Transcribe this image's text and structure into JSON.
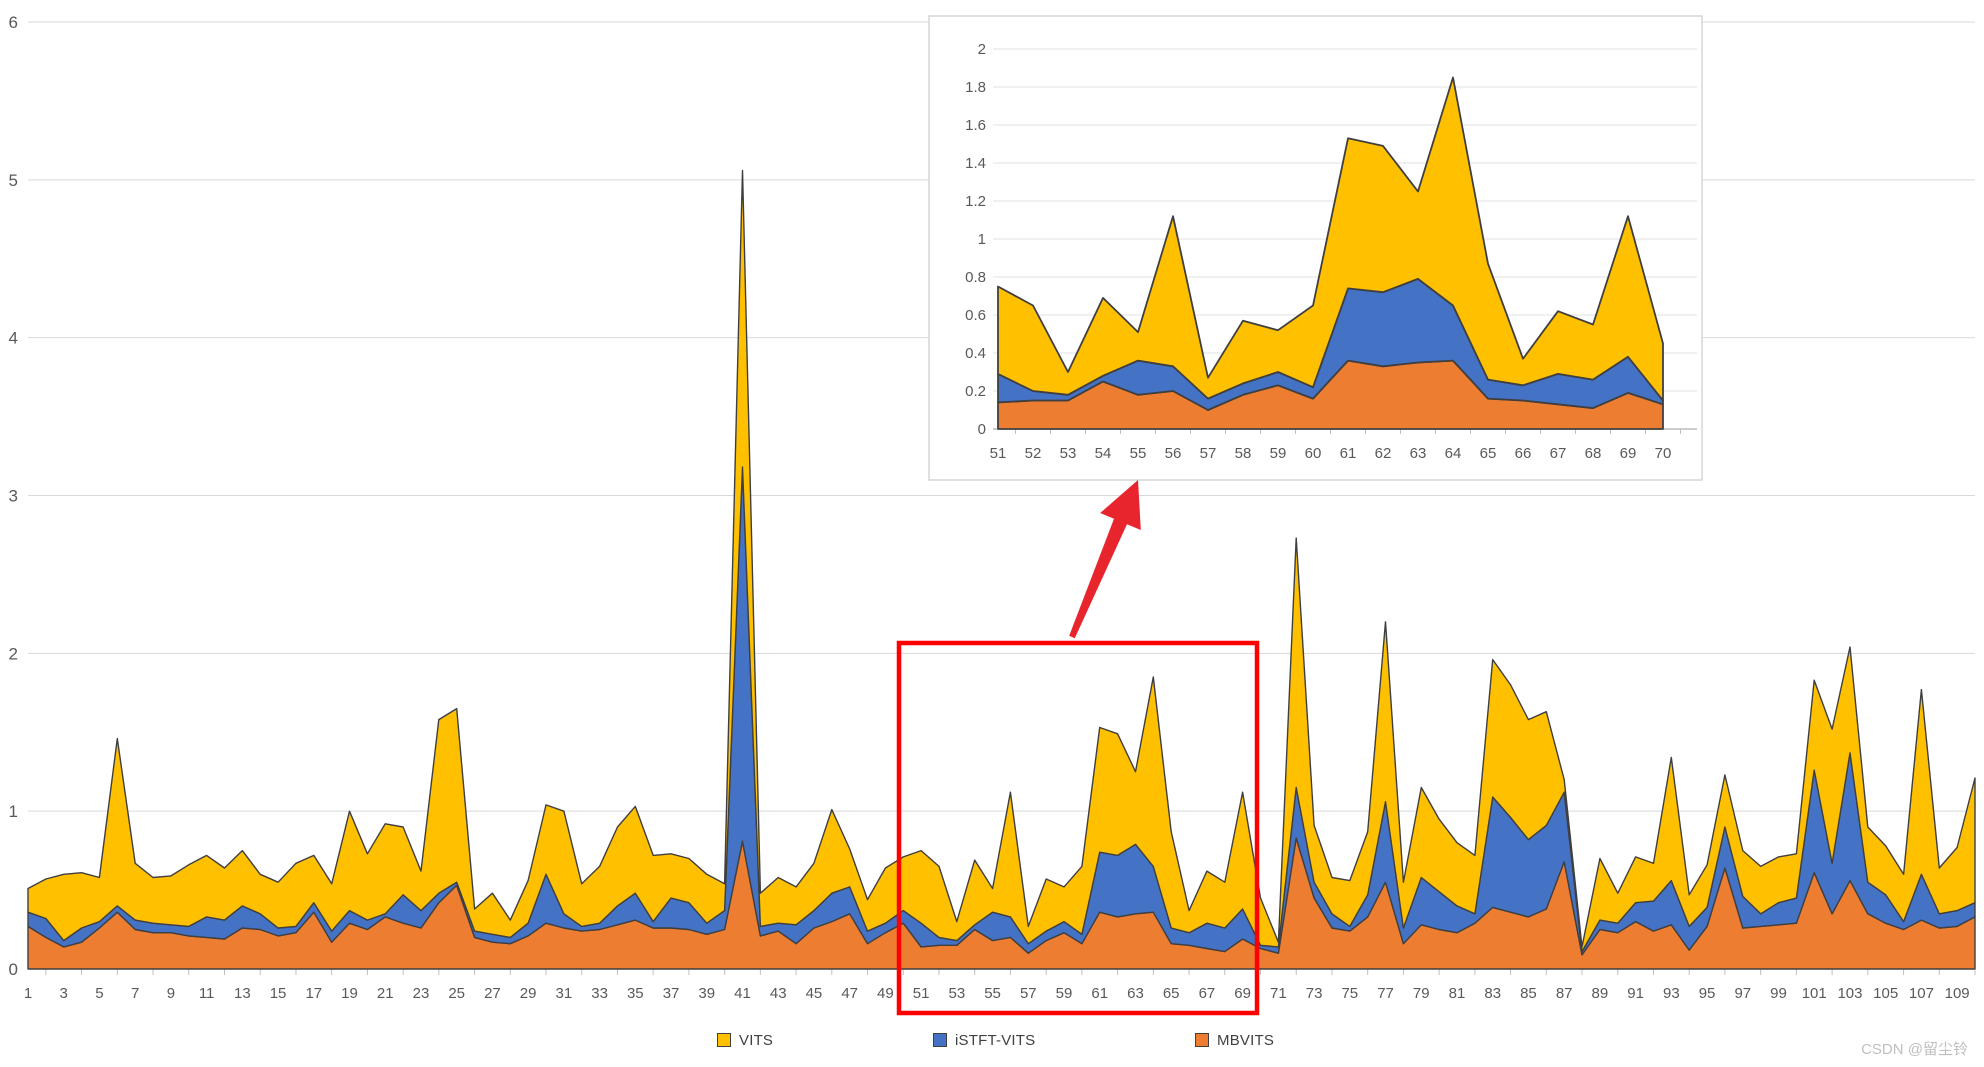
{
  "page": {
    "background": "#ffffff"
  },
  "watermark": {
    "text": "CSDN @留尘铃",
    "color": "#bfbfbf"
  },
  "legend": {
    "items": [
      {
        "label": "VITS",
        "color": "#FFC000"
      },
      {
        "label": "iSTFT-VITS",
        "color": "#4472C4"
      },
      {
        "label": "MBVITS",
        "color": "#ED7D31"
      }
    ]
  },
  "chart_data": {
    "type": "area",
    "stacked": true,
    "title": "",
    "xlabel": "",
    "ylabel": "",
    "grid": true,
    "legend_position": "bottom",
    "x_categories": [
      1,
      2,
      3,
      4,
      5,
      6,
      7,
      8,
      9,
      10,
      11,
      12,
      13,
      14,
      15,
      16,
      17,
      18,
      19,
      20,
      21,
      22,
      23,
      24,
      25,
      26,
      27,
      28,
      29,
      30,
      31,
      32,
      33,
      34,
      35,
      36,
      37,
      38,
      39,
      40,
      41,
      42,
      43,
      44,
      45,
      46,
      47,
      48,
      49,
      50,
      51,
      52,
      53,
      54,
      55,
      56,
      57,
      58,
      59,
      60,
      61,
      62,
      63,
      64,
      65,
      66,
      67,
      68,
      69,
      70,
      71,
      72,
      73,
      74,
      75,
      76,
      77,
      78,
      79,
      80,
      81,
      82,
      83,
      84,
      85,
      86,
      87,
      88,
      89,
      90,
      91,
      92,
      93,
      94,
      95,
      96,
      97,
      98,
      99,
      100,
      101,
      102,
      103,
      104,
      105,
      106,
      107,
      108,
      109,
      110
    ],
    "main_axis": {
      "ylim": [
        0,
        6
      ],
      "y_ticks": [
        0,
        1,
        2,
        3,
        4,
        5,
        6
      ],
      "x_label_style": "odd numbers 1-109",
      "gridline_color": "#d9d9d9",
      "axis_label_color": "#595959"
    },
    "series_stack_order_bottom_to_top": [
      "MBVITS",
      "iSTFT-VITS",
      "VITS"
    ],
    "series": [
      {
        "name": "MBVITS",
        "color": "#ED7D31",
        "values": [
          0.27,
          0.2,
          0.14,
          0.17,
          0.26,
          0.36,
          0.25,
          0.23,
          0.23,
          0.21,
          0.2,
          0.19,
          0.26,
          0.25,
          0.21,
          0.23,
          0.36,
          0.17,
          0.29,
          0.25,
          0.33,
          0.29,
          0.26,
          0.42,
          0.53,
          0.2,
          0.17,
          0.16,
          0.21,
          0.29,
          0.26,
          0.24,
          0.25,
          0.28,
          0.31,
          0.26,
          0.26,
          0.25,
          0.22,
          0.25,
          0.81,
          0.21,
          0.24,
          0.16,
          0.26,
          0.3,
          0.35,
          0.16,
          0.23,
          0.29,
          0.14,
          0.15,
          0.15,
          0.25,
          0.18,
          0.2,
          0.1,
          0.18,
          0.23,
          0.16,
          0.36,
          0.33,
          0.35,
          0.36,
          0.16,
          0.15,
          0.13,
          0.11,
          0.19,
          0.13,
          0.1,
          0.83,
          0.45,
          0.26,
          0.24,
          0.33,
          0.55,
          0.16,
          0.28,
          0.25,
          0.23,
          0.29,
          0.39,
          0.36,
          0.33,
          0.38,
          0.68,
          0.09,
          0.25,
          0.23,
          0.3,
          0.24,
          0.28,
          0.12,
          0.27,
          0.64,
          0.26,
          0.27,
          0.28,
          0.29,
          0.61,
          0.35,
          0.56,
          0.35,
          0.29,
          0.25,
          0.31,
          0.26,
          0.27,
          0.33
        ]
      },
      {
        "name": "iSTFT-VITS",
        "color": "#4472C4",
        "values": [
          0.09,
          0.12,
          0.04,
          0.09,
          0.04,
          0.04,
          0.06,
          0.06,
          0.05,
          0.06,
          0.13,
          0.12,
          0.14,
          0.1,
          0.05,
          0.04,
          0.06,
          0.07,
          0.08,
          0.06,
          0.02,
          0.18,
          0.11,
          0.06,
          0.02,
          0.04,
          0.05,
          0.04,
          0.08,
          0.31,
          0.09,
          0.03,
          0.04,
          0.12,
          0.17,
          0.04,
          0.19,
          0.17,
          0.07,
          0.12,
          2.37,
          0.06,
          0.05,
          0.12,
          0.11,
          0.18,
          0.17,
          0.08,
          0.06,
          0.08,
          0.15,
          0.05,
          0.03,
          0.03,
          0.18,
          0.13,
          0.06,
          0.06,
          0.07,
          0.06,
          0.38,
          0.39,
          0.44,
          0.29,
          0.1,
          0.08,
          0.16,
          0.15,
          0.19,
          0.02,
          0.04,
          0.32,
          0.1,
          0.09,
          0.03,
          0.14,
          0.51,
          0.1,
          0.3,
          0.24,
          0.17,
          0.06,
          0.7,
          0.6,
          0.49,
          0.53,
          0.44,
          0.02,
          0.06,
          0.06,
          0.12,
          0.19,
          0.28,
          0.15,
          0.12,
          0.26,
          0.2,
          0.08,
          0.14,
          0.16,
          0.65,
          0.32,
          0.81,
          0.2,
          0.18,
          0.05,
          0.29,
          0.09,
          0.1,
          0.09
        ]
      },
      {
        "name": "VITS",
        "color": "#FFC000",
        "values": [
          0.15,
          0.25,
          0.42,
          0.35,
          0.28,
          1.06,
          0.36,
          0.29,
          0.31,
          0.39,
          0.39,
          0.33,
          0.35,
          0.25,
          0.29,
          0.4,
          0.3,
          0.3,
          0.63,
          0.42,
          0.57,
          0.43,
          0.25,
          1.1,
          1.1,
          0.14,
          0.26,
          0.11,
          0.27,
          0.44,
          0.65,
          0.27,
          0.36,
          0.5,
          0.55,
          0.42,
          0.28,
          0.28,
          0.31,
          0.17,
          1.88,
          0.21,
          0.29,
          0.24,
          0.3,
          0.53,
          0.24,
          0.2,
          0.35,
          0.34,
          0.46,
          0.45,
          0.12,
          0.41,
          0.15,
          0.79,
          0.11,
          0.33,
          0.22,
          0.43,
          0.79,
          0.77,
          0.46,
          1.2,
          0.61,
          0.14,
          0.33,
          0.29,
          0.74,
          0.3,
          0.03,
          1.58,
          0.36,
          0.23,
          0.29,
          0.4,
          1.14,
          0.29,
          0.57,
          0.46,
          0.4,
          0.37,
          0.87,
          0.84,
          0.76,
          0.72,
          0.08,
          0.03,
          0.39,
          0.19,
          0.29,
          0.24,
          0.78,
          0.2,
          0.27,
          0.33,
          0.29,
          0.3,
          0.29,
          0.28,
          0.57,
          0.85,
          0.67,
          0.35,
          0.31,
          0.3,
          1.17,
          0.29,
          0.4,
          0.79
        ]
      }
    ],
    "inset": {
      "description": "magnified view of categories 51-70",
      "x_range": [
        51,
        70
      ],
      "ylim": [
        0,
        2
      ],
      "y_tick_step": 0.2,
      "y_tick_labels": [
        "0",
        "0.2",
        "0.4",
        "0.6",
        "0.8",
        "1",
        "1.2",
        "1.4",
        "1.6",
        "1.8",
        "2"
      ],
      "x_tick_labels": [
        "51",
        "52",
        "53",
        "54",
        "55",
        "56",
        "57",
        "58",
        "59",
        "60",
        "61",
        "62",
        "63",
        "64",
        "65",
        "66",
        "67",
        "68",
        "69",
        "70"
      ]
    },
    "annotations": {
      "highlight_box": {
        "color": "#FF0000",
        "x_category_range": [
          50,
          70
        ],
        "covers": "main chart region 51-69 incl. x labels"
      },
      "arrow": {
        "color": "#E8242C",
        "direction": "from highlight box up to inset"
      }
    }
  }
}
